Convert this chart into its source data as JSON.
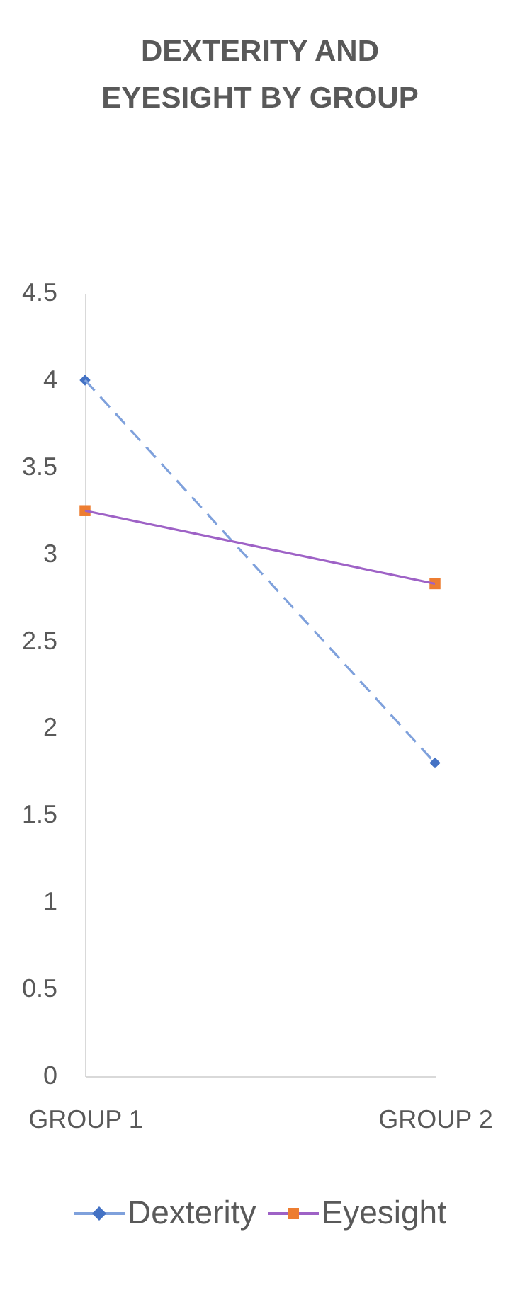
{
  "chart_data": {
    "type": "line",
    "title": "DEXTERITY AND EYESIGHT BY GROUP",
    "categories": [
      "GROUP 1",
      "GROUP 2"
    ],
    "series": [
      {
        "name": "Dexterity",
        "color": "#7fa1dc",
        "colors": [
          "#4472c4",
          "#4472c4"
        ],
        "marker": "diamond",
        "line_style": "dashed",
        "values": [
          4,
          1.8
        ]
      },
      {
        "name": "Eyesight",
        "color": "#9e62c6",
        "colors": [
          "#ed7d31",
          "#ed7d31"
        ],
        "marker": "square",
        "line_style": "solid",
        "values": [
          3.25,
          2.83
        ]
      }
    ],
    "ylim": [
      0,
      4.5
    ],
    "yticks": [
      0,
      0.5,
      1,
      1.5,
      2,
      2.5,
      3,
      3.5,
      4,
      4.5
    ],
    "grid": false,
    "legend": "bottom"
  }
}
